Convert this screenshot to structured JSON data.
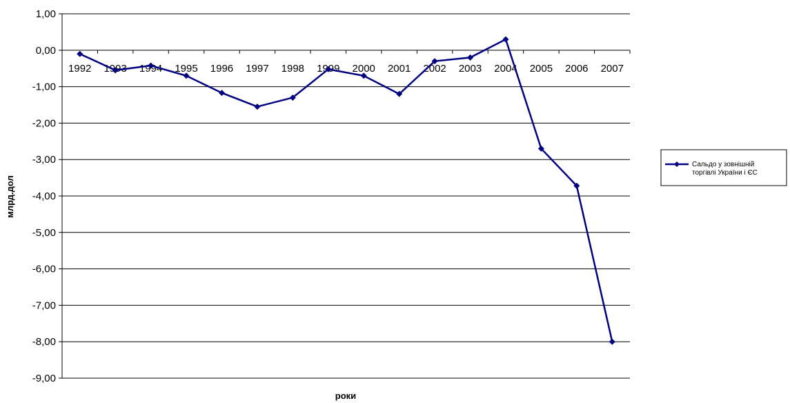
{
  "chart_data": {
    "type": "line",
    "x": [
      "1992",
      "1993",
      "1994",
      "1995",
      "1996",
      "1997",
      "1998",
      "1999",
      "2000",
      "2001",
      "2002",
      "2003",
      "2004",
      "2005",
      "2006",
      "2007"
    ],
    "series": [
      {
        "name": "Сальдо у зовнішній торгівлі України і ЄС",
        "values": [
          -0.1,
          -0.55,
          -0.42,
          -0.7,
          -1.17,
          -1.55,
          -1.3,
          -0.52,
          -0.7,
          -1.2,
          -0.3,
          -0.2,
          0.3,
          -2.7,
          -3.72,
          -8.0
        ],
        "color": "#000080"
      }
    ],
    "xlabel": "роки",
    "ylabel": "млрд.дол",
    "ylim": [
      -9,
      1
    ],
    "yticks": [
      "1,00",
      "0,00",
      "-1,00",
      "-2,00",
      "-3,00",
      "-4,00",
      "-5,00",
      "-6,00",
      "-7,00",
      "-8,00",
      "-9,00"
    ],
    "grid": true,
    "legend_position": "right",
    "legend": {
      "lines": [
        "Сальдо у зовнішній",
        "торгівлі України і ЄС"
      ]
    }
  }
}
